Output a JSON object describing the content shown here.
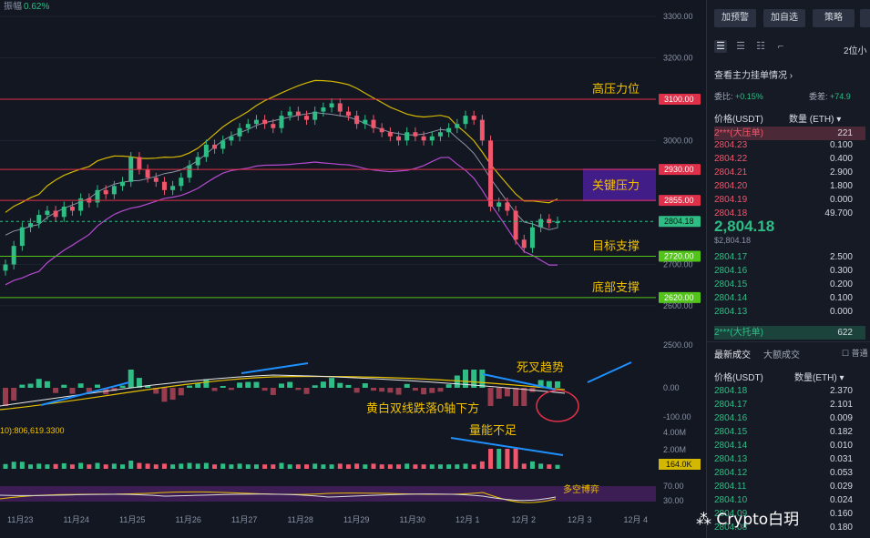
{
  "header": {
    "amplitude_label": "振幅",
    "amplitude_value": "0.62%"
  },
  "chart_data": {
    "type": "candlestick",
    "price_ticks": [
      "3300.00",
      "3200.00",
      "3100.00",
      "3000.00",
      "2930.00",
      "2855.00",
      "2804.18",
      "2720.00",
      "2700.00",
      "2620.00",
      "2600.00"
    ],
    "x_ticks": [
      "11月23",
      "11月24",
      "11月25",
      "11月26",
      "11月27",
      "11月28",
      "11月29",
      "11月30",
      "12月 1",
      "12月 2",
      "12月 3",
      "12月 4"
    ],
    "levels": [
      {
        "price": 3100,
        "label": "高压力位",
        "tag": "3100.00",
        "color": "#e0304a",
        "tag_color": "#e0304a"
      },
      {
        "price": 2930,
        "label": "",
        "tag": "2930.00",
        "color": "#e0304a",
        "tag_color": "#e0304a"
      },
      {
        "price": 2855,
        "label": "",
        "tag": "2855.00",
        "color": "#e0304a",
        "tag_color": "#e0304a"
      },
      {
        "price": 2720,
        "label": "目标支撑",
        "tag": "2720.00",
        "color": "#52c41a",
        "tag_color": "#52c41a"
      },
      {
        "price": 2620,
        "label": "底部支撑",
        "tag": "2620.00",
        "color": "#52c41a",
        "tag_color": "#52c41a"
      }
    ],
    "current_price": {
      "price": 2804.18,
      "tag": "2804.18"
    },
    "key_zone": {
      "label": "关键压力",
      "from": 2855,
      "to": 2930
    },
    "candles_close": [
      2700,
      2745,
      2790,
      2800,
      2820,
      2830,
      2815,
      2840,
      2830,
      2860,
      2850,
      2880,
      2870,
      2890,
      2900,
      2960,
      2930,
      2910,
      2900,
      2880,
      2890,
      2910,
      2940,
      2960,
      2990,
      2980,
      3000,
      3010,
      3030,
      3040,
      3050,
      3040,
      3030,
      3060,
      3070,
      3060,
      3050,
      3070,
      3080,
      3090,
      3070,
      3060,
      3040,
      3050,
      3030,
      3020,
      3010,
      3000,
      3020,
      3010,
      3000,
      3010,
      3020,
      3030,
      3040,
      3060,
      3050,
      3000,
      2840,
      2850,
      2830,
      2760,
      2740,
      2790,
      2810,
      2800,
      2804
    ],
    "macd_ticks": [
      "2500.00",
      "0.00",
      "-100.00"
    ],
    "macd_annotations": [
      "死叉趋势",
      "黄白双线跌落0轴下方"
    ],
    "volume_ticks": [
      "4.00M",
      "2.00M",
      "164.0K"
    ],
    "volume_label": "10):806,619.3300",
    "volume_annotation": "量能不足",
    "rsi_ticks": [
      "70.00",
      "30.00"
    ],
    "rsi_annotation": "多空博弈",
    "colors": {
      "up": "#2ebd85",
      "down": "#f0566c",
      "bg": "#121722",
      "grid": "#1c2230"
    }
  },
  "panel": {
    "buttons": [
      "加预警",
      "加自选",
      "策略"
    ],
    "precision": "2位小",
    "main_force": "查看主力挂单情况",
    "ratio": {
      "committee_label": "委比:",
      "committee_value": "+0.15%",
      "diff_label": "委差:",
      "diff_value": "+74.9"
    },
    "orderbook_headers": {
      "price": "价格(USDT)",
      "qty": "数量 (ETH)"
    },
    "big_ask": {
      "label": "2***(大压单)",
      "qty": "221"
    },
    "asks": [
      {
        "p": "2804.23",
        "q": "0.100"
      },
      {
        "p": "2804.22",
        "q": "0.400"
      },
      {
        "p": "2804.21",
        "q": "2.900"
      },
      {
        "p": "2804.20",
        "q": "1.800"
      },
      {
        "p": "2804.19",
        "q": "0.000"
      },
      {
        "p": "2804.18",
        "q": "49.700"
      }
    ],
    "last_price": "2,804.18",
    "last_price_usd": "$2,804.18",
    "bids": [
      {
        "p": "2804.17",
        "q": "2.500"
      },
      {
        "p": "2804.16",
        "q": "0.300"
      },
      {
        "p": "2804.15",
        "q": "0.200"
      },
      {
        "p": "2804.14",
        "q": "0.100"
      },
      {
        "p": "2804.13",
        "q": "0.000"
      }
    ],
    "big_bid": {
      "label": "2***(大托单)",
      "qty": "622"
    },
    "trades_tabs": [
      "最新成交",
      "大额成交"
    ],
    "normal_label": "普通",
    "trades_headers": {
      "price": "价格(USDT)",
      "qty": "数量(ETH)"
    },
    "trades": [
      {
        "p": "2804.18",
        "q": "2.370"
      },
      {
        "p": "2804.17",
        "q": "2.101"
      },
      {
        "p": "2804.16",
        "q": "0.009"
      },
      {
        "p": "2804.15",
        "q": "0.182"
      },
      {
        "p": "2804.14",
        "q": "0.010"
      },
      {
        "p": "2804.13",
        "q": "0.031"
      },
      {
        "p": "2804.12",
        "q": "0.053"
      },
      {
        "p": "2804.11",
        "q": "0.029"
      },
      {
        "p": "2804.10",
        "q": "0.024"
      },
      {
        "p": "2804.09",
        "q": "0.160"
      },
      {
        "p": "2804.08",
        "q": "0.180"
      }
    ]
  },
  "watermark": "Crypto白玥"
}
